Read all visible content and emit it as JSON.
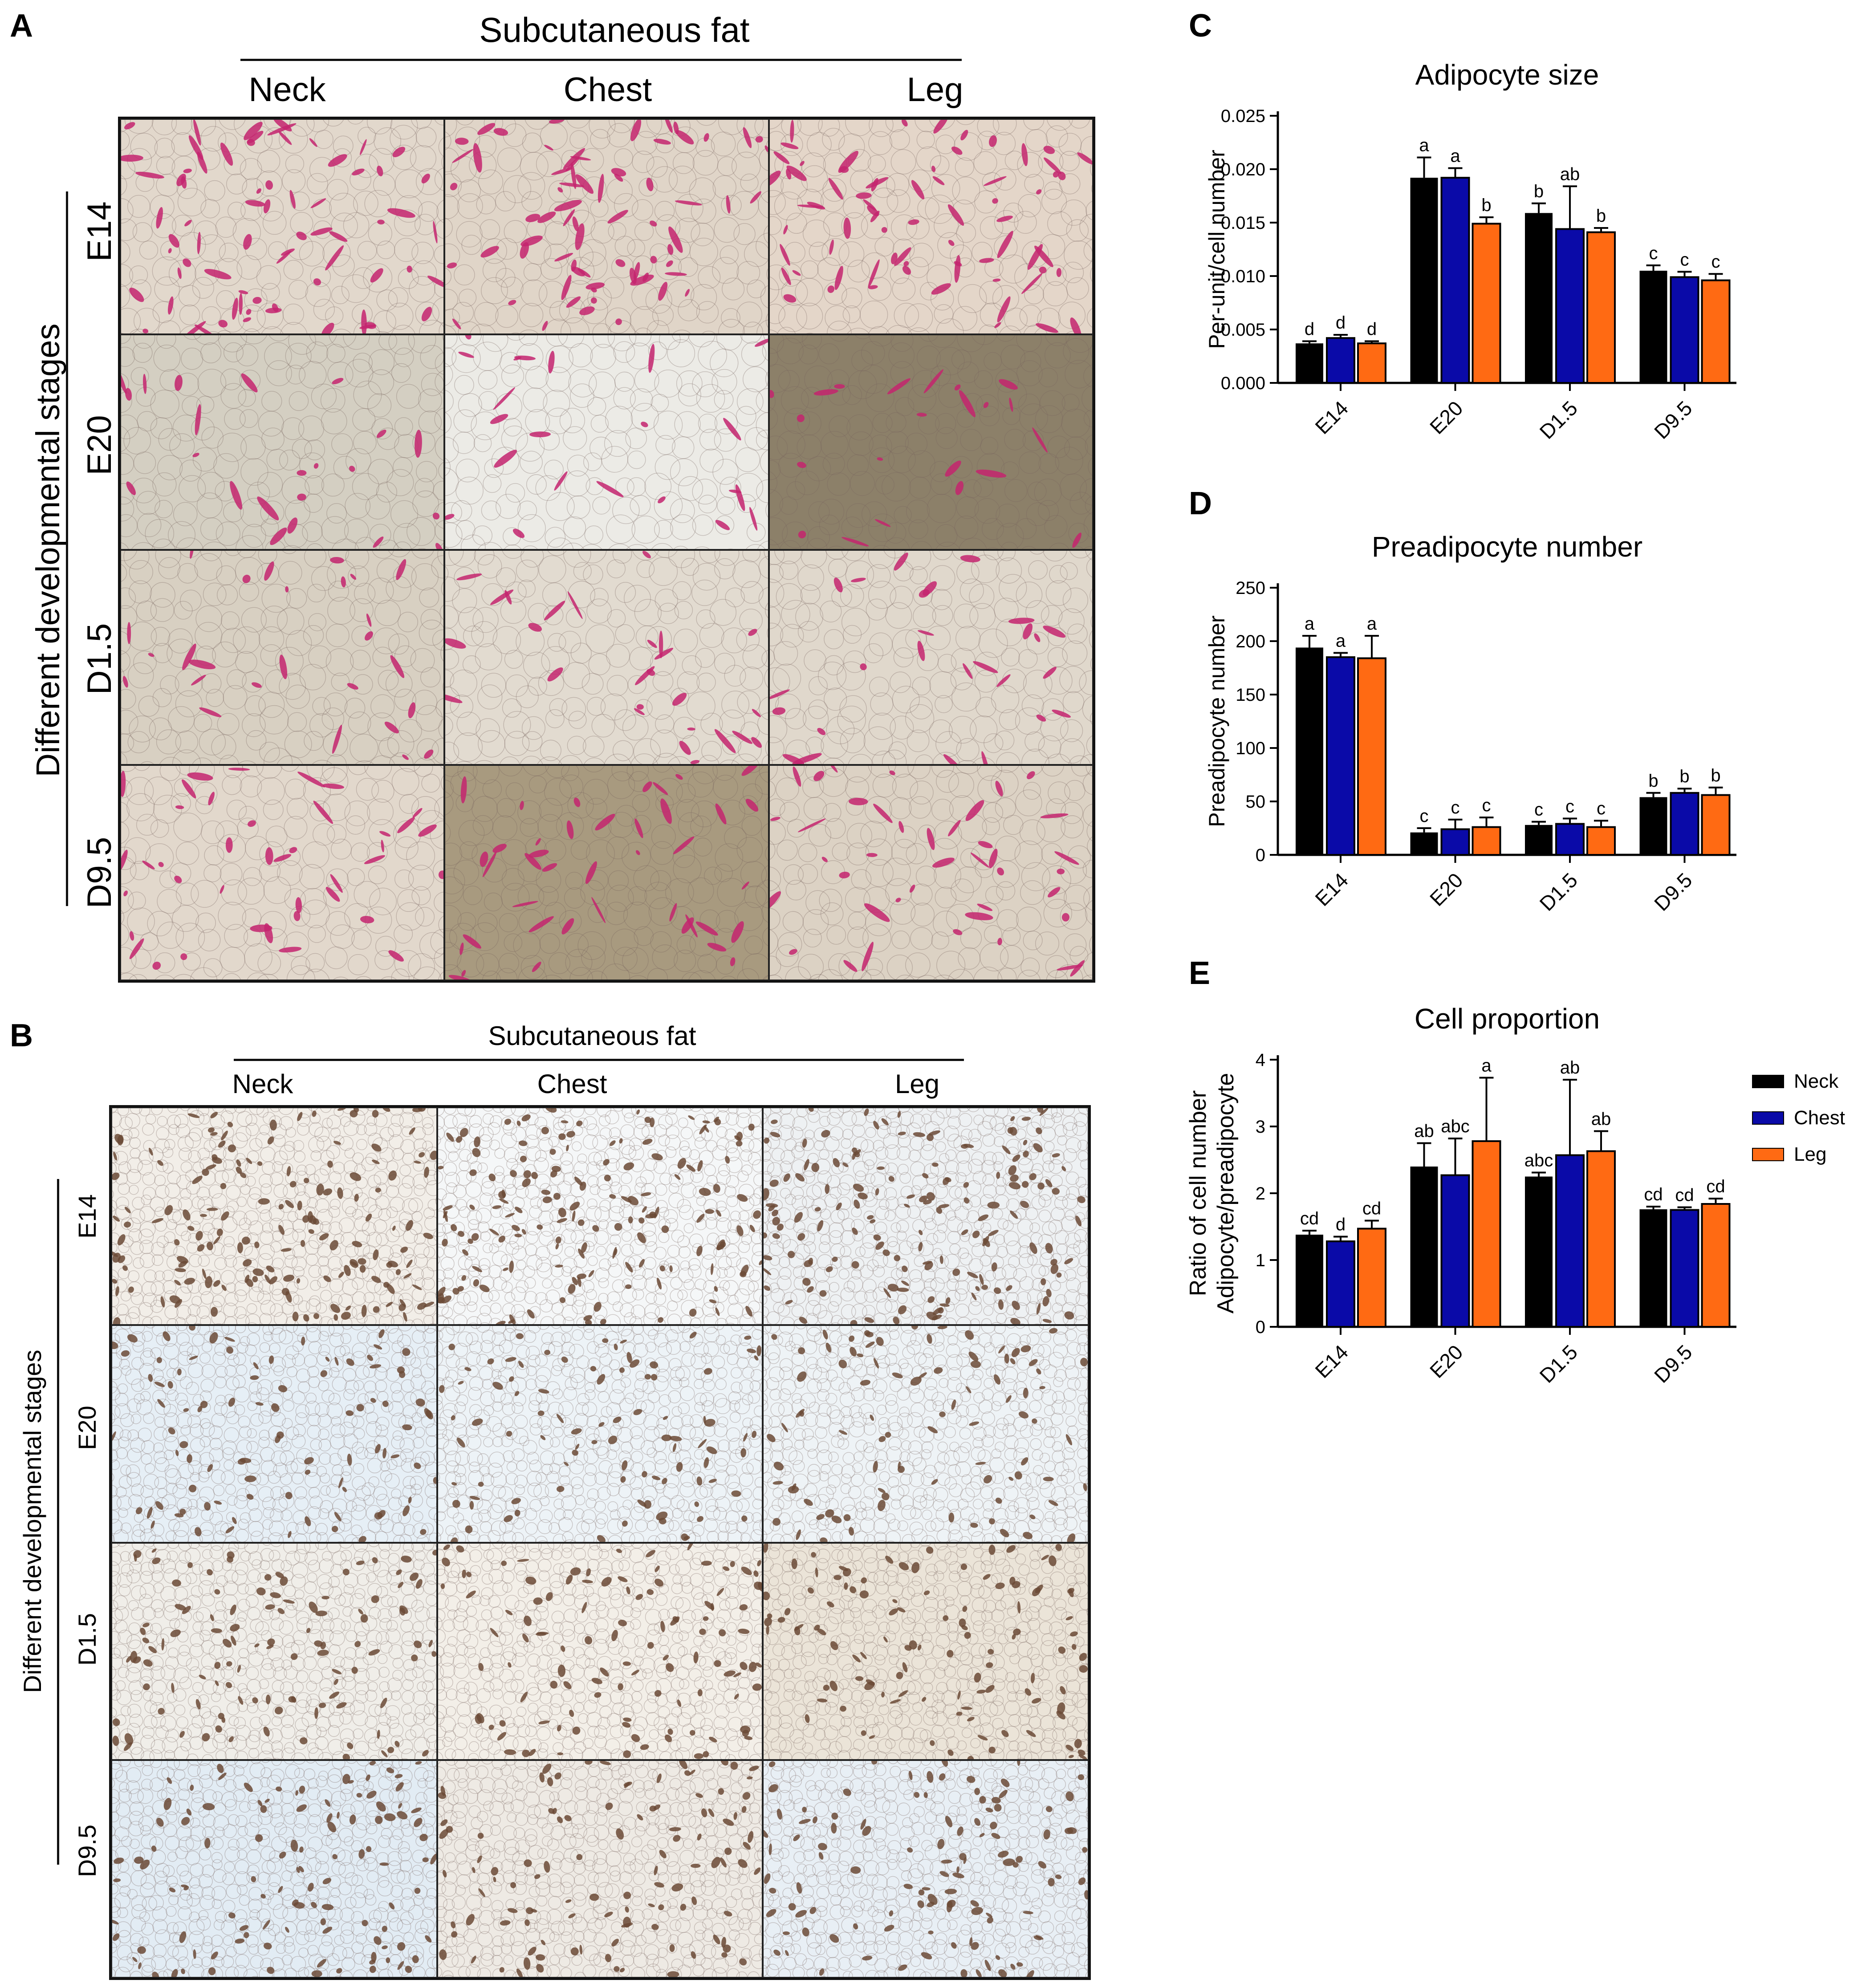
{
  "figure": {
    "panelA": {
      "letter": "A",
      "header": "Subcutaneous fat",
      "columns": [
        "Neck",
        "Chest",
        "Leg"
      ],
      "side_label": "Different developmental stages",
      "rows": [
        "E14",
        "E20",
        "D1.5",
        "D9.5"
      ]
    },
    "panelB": {
      "letter": "B",
      "header": "Subcutaneous fat",
      "columns": [
        "Neck",
        "Chest",
        "Leg"
      ],
      "side_label": "Different developmental stages",
      "rows": [
        "E14",
        "E20",
        "D1.5",
        "D9.5"
      ]
    },
    "panel_letters": {
      "C": "C",
      "D": "D",
      "E": "E"
    },
    "legend": {
      "entries": [
        {
          "name": "Neck",
          "color": "#000000"
        },
        {
          "name": "Chest",
          "color": "#0a0aa8"
        },
        {
          "name": "Leg",
          "color": "#ff6a13"
        }
      ]
    }
  },
  "chart_data": [
    {
      "id": "C",
      "type": "bar",
      "title": "Adipocyte size",
      "ylabel": [
        "Per-unit/cell number"
      ],
      "categories": [
        "E14",
        "E20",
        "D1.5",
        "D9.5"
      ],
      "ylim": [
        0,
        0.025
      ],
      "yticks": [
        "0.000",
        "0.005",
        "0.010",
        "0.015",
        "0.020",
        "0.025"
      ],
      "series": [
        {
          "name": "Neck",
          "color": "#000000",
          "values": [
            0.0037,
            0.0192,
            0.0159,
            0.0105
          ],
          "errors": [
            0.0002,
            0.0019,
            0.0009,
            0.0005
          ],
          "letters": [
            "d",
            "a",
            "b",
            "c"
          ]
        },
        {
          "name": "Chest",
          "color": "#0a0aa8",
          "values": [
            0.0042,
            0.0192,
            0.0144,
            0.0099
          ],
          "errors": [
            0.0003,
            0.0009,
            0.004,
            0.0005
          ],
          "letters": [
            "d",
            "a",
            "ab",
            "c"
          ]
        },
        {
          "name": "Leg",
          "color": "#ff6a13",
          "values": [
            0.0037,
            0.0149,
            0.0141,
            0.0096
          ],
          "errors": [
            0.0002,
            0.0006,
            0.0004,
            0.0006
          ],
          "letters": [
            "d",
            "b",
            "b",
            "c"
          ]
        }
      ]
    },
    {
      "id": "D",
      "type": "bar",
      "title": "Preadipocyte number",
      "ylabel": [
        "Preadipocyte number"
      ],
      "categories": [
        "E14",
        "E20",
        "D1.5",
        "D9.5"
      ],
      "ylim": [
        0,
        250
      ],
      "yticks": [
        "0",
        "50",
        "100",
        "150",
        "200",
        "250"
      ],
      "series": [
        {
          "name": "Neck",
          "color": "#000000",
          "values": [
            194,
            21,
            28,
            54
          ],
          "errors": [
            11,
            4,
            3,
            4
          ],
          "letters": [
            "a",
            "c",
            "c",
            "b"
          ]
        },
        {
          "name": "Chest",
          "color": "#0a0aa8",
          "values": [
            185,
            24,
            29,
            58
          ],
          "errors": [
            4,
            9,
            5,
            4
          ],
          "letters": [
            "a",
            "c",
            "c",
            "b"
          ]
        },
        {
          "name": "Leg",
          "color": "#ff6a13",
          "values": [
            184,
            26,
            26,
            56
          ],
          "errors": [
            21,
            9,
            6,
            7
          ],
          "letters": [
            "a",
            "c",
            "c",
            "b"
          ]
        }
      ]
    },
    {
      "id": "E",
      "type": "bar",
      "title": "Cell proportion",
      "ylabel": [
        "Ratio of cell number",
        "Adipocyte/preadipocyte"
      ],
      "categories": [
        "E14",
        "E20",
        "D1.5",
        "D9.5"
      ],
      "ylim": [
        0,
        4
      ],
      "yticks": [
        "0",
        "1",
        "2",
        "3",
        "4"
      ],
      "series": [
        {
          "name": "Neck",
          "color": "#000000",
          "values": [
            1.38,
            2.4,
            2.25,
            1.76
          ],
          "errors": [
            0.06,
            0.35,
            0.06,
            0.04
          ],
          "letters": [
            "cd",
            "ab",
            "abc",
            "cd"
          ]
        },
        {
          "name": "Chest",
          "color": "#0a0aa8",
          "values": [
            1.28,
            2.27,
            2.57,
            1.75
          ],
          "errors": [
            0.07,
            0.55,
            1.13,
            0.04
          ],
          "letters": [
            "d",
            "abc",
            "ab",
            "cd"
          ]
        },
        {
          "name": "Leg",
          "color": "#ff6a13",
          "values": [
            1.47,
            2.78,
            2.63,
            1.84
          ],
          "errors": [
            0.12,
            0.95,
            0.3,
            0.08
          ],
          "letters": [
            "cd",
            "a",
            "ab",
            "cd"
          ]
        }
      ]
    }
  ]
}
